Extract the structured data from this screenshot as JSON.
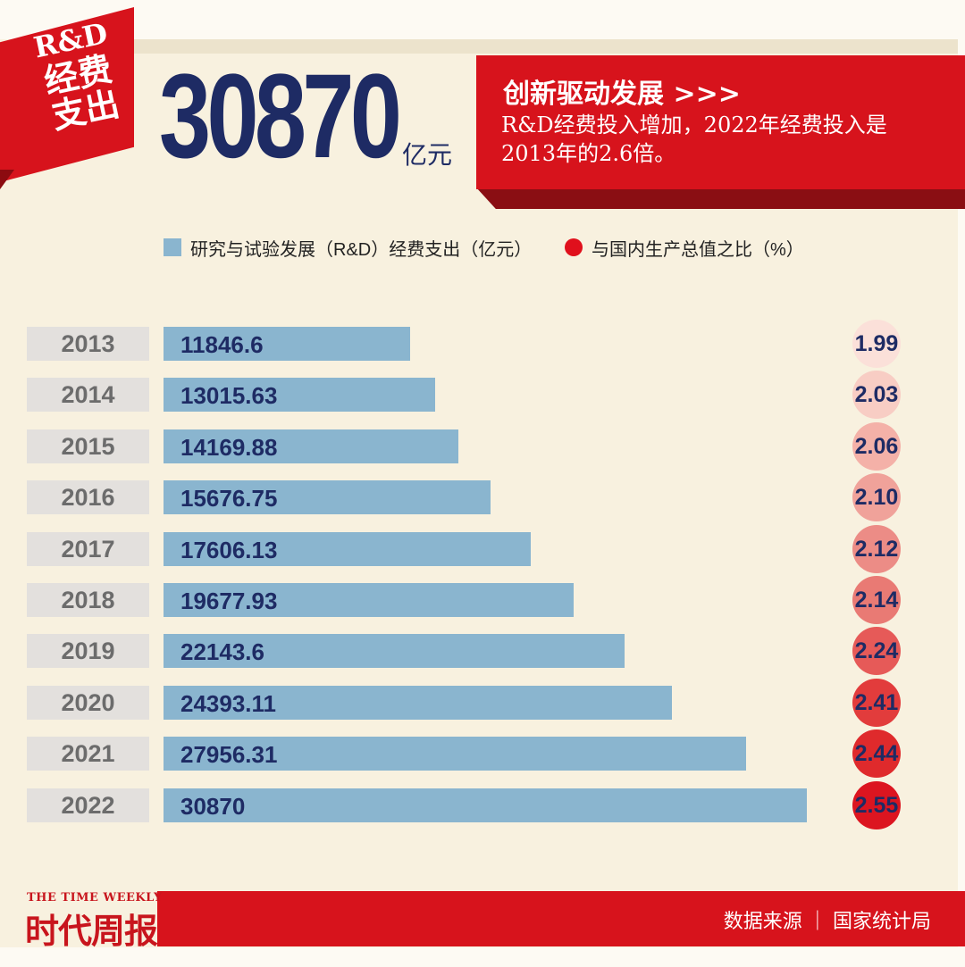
{
  "badge": {
    "line1": "R&D",
    "line2": "经费",
    "line3": "支出"
  },
  "headline": {
    "value": "30870",
    "unit": "亿元"
  },
  "callout": {
    "title": "创新驱动发展 >>>",
    "text": "R&D经费投入增加，2022年经费投入是2013年的2.6倍。"
  },
  "legend": {
    "bar_label": "研究与试验发展（R&D）经费支出（亿元）",
    "dot_label": "与国内生产总值之比（%）"
  },
  "chart_data": {
    "type": "bar",
    "orientation": "horizontal",
    "categories": [
      "2013",
      "2014",
      "2015",
      "2016",
      "2017",
      "2018",
      "2019",
      "2020",
      "2021",
      "2022"
    ],
    "series": [
      {
        "name": "研究与试验发展（R&D）经费支出（亿元）",
        "values": [
          11846.6,
          13015.63,
          14169.88,
          15676.75,
          17606.13,
          19677.93,
          22143.6,
          24393.11,
          27956.31,
          30870
        ]
      },
      {
        "name": "与国内生产总值之比（%）",
        "values": [
          1.99,
          2.03,
          2.06,
          2.1,
          2.12,
          2.14,
          2.24,
          2.41,
          2.44,
          2.55
        ]
      }
    ],
    "bar_value_labels": [
      "11846.6",
      "13015.63",
      "14169.88",
      "15676.75",
      "17606.13",
      "19677.93",
      "22143.6",
      "24393.11",
      "27956.31",
      "30870"
    ],
    "ratio_value_labels": [
      "1.99",
      "2.03",
      "2.06",
      "2.10",
      "2.12",
      "2.14",
      "2.24",
      "2.41",
      "2.44",
      "2.55"
    ],
    "xlim": [
      0,
      30870
    ]
  },
  "colors": {
    "brand_red": "#d7131c",
    "bar_blue": "#8ab5cf",
    "navy": "#1e2b64",
    "ratio_circle_scale": [
      "#fbe0d9",
      "#f8cdc4",
      "#f4b1a8",
      "#f0a29a",
      "#ec8c86",
      "#e97a74",
      "#e65a58",
      "#e23c3c",
      "#df2a2c",
      "#dc1520"
    ]
  },
  "footer": {
    "source": "数据来源 ｜ 国家统计局"
  },
  "brand": {
    "en": "THE TIME WEEKLY",
    "cn": "时代周报"
  }
}
